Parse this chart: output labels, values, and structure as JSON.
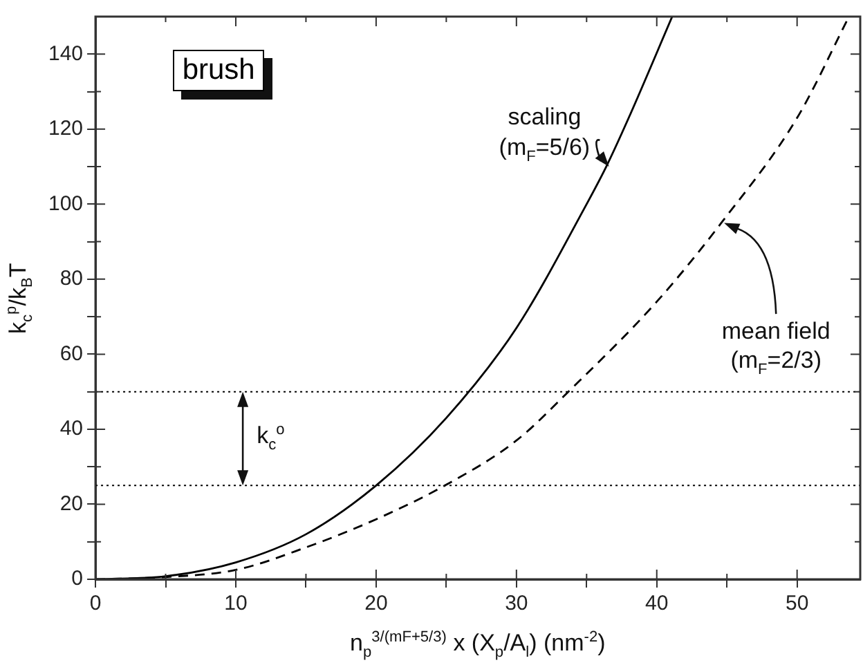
{
  "chart_data": {
    "type": "line",
    "xlabel": "n$_{p}$$^{3/(mF+5/3)}$ x (X$_{p}$/A$_{l}$)  (nm$^{-2}$)",
    "ylabel": "k$_{c}$$^{p}$/k$_{B}$T",
    "xlim": [
      0,
      54.5
    ],
    "ylim": [
      0,
      150
    ],
    "xticks": [
      0,
      {
        "value": 5,
        "label": null
      },
      10,
      {
        "value": 15,
        "label": null
      },
      20,
      {
        "value": 25,
        "label": null
      },
      30,
      {
        "value": 35,
        "label": null
      },
      40,
      {
        "value": 45,
        "label": null
      },
      50
    ],
    "yticks": [
      0,
      {
        "value": 10,
        "label": null
      },
      20,
      {
        "value": 30,
        "label": null
      },
      40,
      {
        "value": 50,
        "label": null
      },
      60,
      {
        "value": 70,
        "label": null
      },
      80,
      {
        "value": 90,
        "label": null
      },
      100,
      {
        "value": 110,
        "label": null
      },
      120,
      {
        "value": 130,
        "label": null
      },
      140
    ],
    "series": [
      {
        "name": "scaling (m$_{F}$=5/6)",
        "color": "#000000",
        "line_style": "solid",
        "x": [
          0,
          5,
          10,
          15,
          20,
          25,
          30,
          35,
          36.4,
          38,
          41.1
        ],
        "values": [
          0,
          0.8,
          4.5,
          12,
          25,
          43,
          67,
          100,
          110,
          123,
          150
        ]
      },
      {
        "name": "mean field (m$_{F}$=2/3)",
        "color": "#000000",
        "line_style": "dashed",
        "x": [
          0,
          5,
          10,
          15,
          20,
          24.9,
          30,
          33.7,
          40,
          44.6,
          50,
          53.7
        ],
        "values": [
          0,
          0.6,
          2.5,
          8.5,
          16,
          25,
          37,
          50,
          74,
          95,
          123,
          150
        ]
      }
    ],
    "ref_lines": [
      {
        "axis": "y",
        "value": 50,
        "color": "#000000",
        "line_style": "dotted"
      },
      {
        "axis": "y",
        "value": 25,
        "color": "#000000",
        "line_style": "dotted"
      }
    ],
    "annotations": [
      "brush",
      "k$_{c}$$^{o}$"
    ],
    "marker": "none",
    "grid": false,
    "legend": false
  }
}
